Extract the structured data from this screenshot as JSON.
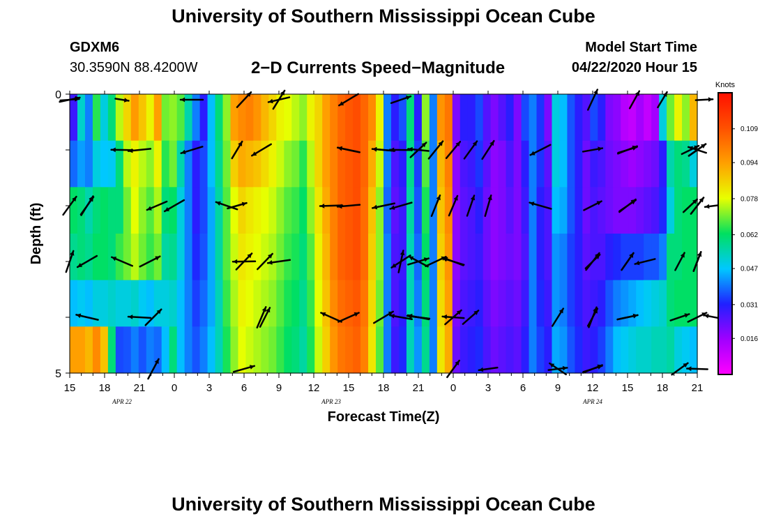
{
  "header": {
    "title": "University of Southern Mississippi Ocean Cube",
    "station_id": "GDXM6",
    "coordinates": "30.3590N 88.4200W",
    "product": "2−D Currents Speed−Magnitude",
    "model_start_label": "Model Start Time",
    "model_start_value": "04/22/2020 Hour 15"
  },
  "footer": {
    "title": "University of Southern Mississippi Ocean Cube"
  },
  "chart_data": {
    "type": "heatmap",
    "title": "2−D Currents Speed−Magnitude",
    "xlabel": "Forecast Time(Z)",
    "ylabel": "Depth (ft)",
    "y_range": [
      0,
      5
    ],
    "y_tick_labels": [
      "0",
      "5"
    ],
    "x_tick_labels": [
      "15",
      "18",
      "21",
      "0",
      "3",
      "6",
      "9",
      "12",
      "15",
      "18",
      "21",
      "0",
      "3",
      "6",
      "9",
      "12",
      "15",
      "18",
      "21"
    ],
    "date_labels": [
      "APR  22",
      "APR  23",
      "APR  24"
    ],
    "colorbar": {
      "unit": "Knots",
      "tick_labels": [
        "0.109",
        "0.094",
        "0.078",
        "0.062",
        "0.047",
        "0.031",
        "0.016"
      ],
      "ticks": [
        0.109,
        0.094,
        0.078,
        0.062,
        0.047,
        0.031,
        0.016
      ],
      "range": [
        0.0,
        0.125
      ],
      "colors": [
        "#ff00ff",
        "#a000ff",
        "#2020ff",
        "#00c8ff",
        "#00e060",
        "#e8ff00",
        "#ffa000",
        "#ff5000",
        "#ff1000"
      ]
    },
    "column_speeds": [
      [
        0.028,
        0.052,
        0.04,
        0.065,
        0.05,
        0.06,
        0.075,
        0.085,
        0.095,
        0.088,
        0.08,
        0.094,
        0.07,
        0.072,
        0.068,
        0.055,
        0.04,
        0.03,
        0.046,
        0.06,
        0.072,
        0.094,
        0.098,
        0.1,
        0.096,
        0.09,
        0.085,
        0.08,
        0.078,
        0.075,
        0.072,
        0.08,
        0.085,
        0.094,
        0.1,
        0.105,
        0.108,
        0.11,
        0.105,
        0.098,
        0.08,
        0.04,
        0.03,
        0.036,
        0.06,
        0.03,
        0.072,
        0.04,
        0.096,
        0.102,
        0.02,
        0.03,
        0.03,
        0.035,
        0.025,
        0.02,
        0.025,
        0.03,
        0.02,
        0.035,
        0.04,
        0.033,
        0.02,
        0.05,
        0.046,
        0.036,
        0.03,
        0.025,
        0.035,
        0.03,
        0.02,
        0.018,
        0.012,
        0.01,
        0.015,
        0.01,
        0.015,
        0.05,
        0.07,
        0.08,
        0.072,
        0.09
      ],
      [
        0.038,
        0.043,
        0.04,
        0.05,
        0.047,
        0.048,
        0.06,
        0.075,
        0.08,
        0.075,
        0.072,
        0.08,
        0.065,
        0.07,
        0.055,
        0.04,
        0.03,
        0.035,
        0.046,
        0.058,
        0.07,
        0.086,
        0.092,
        0.09,
        0.088,
        0.084,
        0.08,
        0.076,
        0.072,
        0.07,
        0.065,
        0.075,
        0.085,
        0.094,
        0.1,
        0.106,
        0.108,
        0.11,
        0.105,
        0.092,
        0.076,
        0.04,
        0.026,
        0.03,
        0.058,
        0.034,
        0.068,
        0.04,
        0.09,
        0.1,
        0.018,
        0.026,
        0.028,
        0.033,
        0.024,
        0.018,
        0.02,
        0.026,
        0.02,
        0.03,
        0.04,
        0.033,
        0.024,
        0.05,
        0.046,
        0.036,
        0.03,
        0.022,
        0.028,
        0.026,
        0.022,
        0.02,
        0.018,
        0.016,
        0.018,
        0.02,
        0.022,
        0.03,
        0.055,
        0.06,
        0.058,
        0.05
      ],
      [
        0.062,
        0.06,
        0.055,
        0.06,
        0.062,
        0.06,
        0.06,
        0.07,
        0.078,
        0.072,
        0.068,
        0.074,
        0.06,
        0.062,
        0.05,
        0.04,
        0.03,
        0.035,
        0.044,
        0.056,
        0.068,
        0.078,
        0.085,
        0.082,
        0.08,
        0.078,
        0.076,
        0.072,
        0.068,
        0.066,
        0.062,
        0.072,
        0.082,
        0.092,
        0.1,
        0.106,
        0.108,
        0.11,
        0.104,
        0.088,
        0.072,
        0.038,
        0.024,
        0.028,
        0.056,
        0.036,
        0.064,
        0.04,
        0.088,
        0.098,
        0.018,
        0.024,
        0.026,
        0.03,
        0.022,
        0.018,
        0.02,
        0.024,
        0.02,
        0.028,
        0.04,
        0.03,
        0.026,
        0.046,
        0.044,
        0.036,
        0.03,
        0.022,
        0.026,
        0.024,
        0.022,
        0.02,
        0.02,
        0.02,
        0.022,
        0.024,
        0.026,
        0.032,
        0.05,
        0.06,
        0.062,
        0.062
      ],
      [
        0.058,
        0.06,
        0.058,
        0.062,
        0.062,
        0.06,
        0.066,
        0.07,
        0.075,
        0.07,
        0.066,
        0.07,
        0.056,
        0.058,
        0.05,
        0.04,
        0.032,
        0.036,
        0.044,
        0.056,
        0.068,
        0.076,
        0.082,
        0.08,
        0.078,
        0.076,
        0.074,
        0.07,
        0.066,
        0.064,
        0.06,
        0.068,
        0.08,
        0.09,
        0.1,
        0.106,
        0.108,
        0.11,
        0.104,
        0.086,
        0.072,
        0.04,
        0.026,
        0.028,
        0.054,
        0.038,
        0.062,
        0.04,
        0.086,
        0.096,
        0.018,
        0.024,
        0.026,
        0.028,
        0.022,
        0.018,
        0.02,
        0.022,
        0.02,
        0.026,
        0.04,
        0.03,
        0.026,
        0.042,
        0.04,
        0.034,
        0.03,
        0.024,
        0.026,
        0.026,
        0.03,
        0.032,
        0.034,
        0.034,
        0.034,
        0.036,
        0.036,
        0.04,
        0.06,
        0.06,
        0.062,
        0.062
      ],
      [
        0.046,
        0.048,
        0.046,
        0.05,
        0.05,
        0.052,
        0.05,
        0.05,
        0.052,
        0.048,
        0.046,
        0.05,
        0.05,
        0.052,
        0.046,
        0.04,
        0.034,
        0.038,
        0.044,
        0.054,
        0.066,
        0.074,
        0.08,
        0.078,
        0.076,
        0.074,
        0.072,
        0.068,
        0.064,
        0.062,
        0.058,
        0.066,
        0.078,
        0.088,
        0.098,
        0.104,
        0.106,
        0.108,
        0.102,
        0.084,
        0.07,
        0.04,
        0.026,
        0.03,
        0.054,
        0.04,
        0.06,
        0.04,
        0.084,
        0.094,
        0.02,
        0.026,
        0.028,
        0.03,
        0.024,
        0.02,
        0.022,
        0.024,
        0.022,
        0.028,
        0.04,
        0.032,
        0.028,
        0.042,
        0.04,
        0.034,
        0.03,
        0.026,
        0.028,
        0.03,
        0.036,
        0.04,
        0.042,
        0.044,
        0.046,
        0.048,
        0.05,
        0.052,
        0.06,
        0.062,
        0.062,
        0.062
      ],
      [
        0.094,
        0.094,
        0.09,
        0.098,
        0.088,
        0.06,
        0.035,
        0.036,
        0.04,
        0.036,
        0.04,
        0.038,
        0.046,
        0.06,
        0.046,
        0.04,
        0.036,
        0.04,
        0.046,
        0.054,
        0.064,
        0.072,
        0.078,
        0.076,
        0.074,
        0.072,
        0.07,
        0.066,
        0.062,
        0.06,
        0.056,
        0.064,
        0.076,
        0.086,
        0.096,
        0.102,
        0.104,
        0.106,
        0.1,
        0.082,
        0.068,
        0.04,
        0.028,
        0.032,
        0.054,
        0.042,
        0.058,
        0.04,
        0.082,
        0.092,
        0.022,
        0.028,
        0.03,
        0.032,
        0.026,
        0.022,
        0.024,
        0.026,
        0.024,
        0.03,
        0.04,
        0.034,
        0.03,
        0.044,
        0.042,
        0.036,
        0.032,
        0.028,
        0.03,
        0.034,
        0.04,
        0.046,
        0.048,
        0.05,
        0.052,
        0.052,
        0.054,
        0.054,
        0.056,
        0.05,
        0.048,
        0.046
      ]
    ],
    "arrow_rows": [
      {
        "label": "row-1",
        "arrows": [
          [
            1.5,
            0.0
          ],
          [
            9.5,
            0.8
          ],
          [
            6.0,
            0.9
          ],
          [
            16.2,
            0.7
          ],
          [
            17.0,
            0.5
          ],
          [
            18.2,
            0.4
          ],
          [
            15.0,
            1.0
          ],
          [
            -8.0,
            1.0
          ],
          [
            0.0,
            0.8
          ],
          [
            0.0,
            0.6
          ],
          [
            -6.0,
            0.9
          ],
          [
            -3.5,
            1.0
          ],
          [
            5.0,
            0.8
          ]
        ]
      },
      {
        "label": "row-2",
        "arrows": [
          [
            -9.0,
            1.0
          ],
          [
            -8.0,
            1.0
          ],
          [
            -2.0,
            1.0
          ],
          [
            -9.0,
            1.0
          ],
          [
            -5.5,
            1.0
          ],
          [
            -1.5,
            0.9
          ],
          [
            -10.0,
            0.8
          ],
          [
            10.0,
            0.9
          ],
          [
            11.5,
            0.9
          ],
          [
            10.5,
            1.0
          ],
          [
            -18.0,
            0.6
          ],
          [
            -13.5,
            1.0
          ],
          [
            -9.5,
            1.0
          ],
          [
            12.0,
            0.9
          ],
          [
            18.0,
            0.8
          ],
          [
            16.0,
            0.7
          ],
          [
            4.8,
            0.7
          ],
          [
            17.8,
            0.6
          ],
          [
            18.0,
            0.8
          ],
          [
            16.0,
            0.8
          ],
          [
            15.0,
            0.7
          ],
          [
            -8.0,
            1.0
          ],
          [
            -3.5,
            1.0
          ],
          [
            11.0,
            0.9
          ]
        ]
      },
      {
        "label": "row-3",
        "arrows": [
          [
            0.5,
            1.0
          ],
          [
            -7.5,
            1.0
          ],
          [
            -9.0,
            1.0
          ],
          [
            -3.0,
            1.0
          ],
          [
            -9.0,
            1.0
          ],
          [
            -4.5,
            1.0
          ],
          [
            -2.5,
            0.9
          ],
          [
            0.0,
            1.0
          ],
          [
            11.5,
            0.9
          ],
          [
            10.5,
            1.0
          ],
          [
            -18.5,
            0.7
          ],
          [
            -13.5,
            1.0
          ],
          [
            -9.5,
            1.0
          ],
          [
            12.0,
            0.9
          ],
          [
            18.0,
            0.8
          ],
          [
            16.0,
            0.7
          ],
          [
            4.8,
            0.7
          ],
          [
            17.8,
            0.6
          ],
          [
            18.0,
            0.8
          ],
          [
            16.0,
            0.8
          ],
          [
            15.0,
            0.7
          ],
          [
            -8.0,
            1.0
          ],
          [
            0.5,
            0.9
          ],
          [
            11.0,
            0.9
          ]
        ]
      },
      {
        "label": "row-4",
        "arrows": [
          [
            2.3,
            1.0
          ],
          [
            5.0,
            1.0
          ],
          [
            9.5,
            1.0
          ],
          [
            -5.0,
            1.0
          ],
          [
            -9.5,
            1.0
          ],
          [
            -1.5,
            1.0
          ],
          [
            -6.0,
            1.0
          ],
          [
            -0.5,
            1.0
          ],
          [
            0.0,
            1.0
          ],
          [
            10.5,
            1.0
          ],
          [
            -16.5,
            0.8
          ],
          [
            -11.0,
            0.9
          ],
          [
            -10.0,
            0.9
          ],
          [
            10.0,
            0.9
          ],
          [
            15.0,
            0.9
          ],
          [
            16.0,
            0.8
          ],
          [
            5.6,
            0.9
          ],
          [
            17.5,
            0.7
          ],
          [
            18.0,
            0.8
          ],
          [
            16.0,
            0.8
          ],
          [
            15.0,
            0.7
          ],
          [
            18.0,
            0.8
          ],
          [
            -11.0,
            1.0
          ]
        ]
      },
      {
        "label": "row-5",
        "arrows": [
          [
            2.4,
            1.0
          ],
          [
            5.5,
            1.0
          ],
          [
            9.0,
            1.0
          ],
          [
            -10.0,
            1.0
          ],
          [
            -7.5,
            1.0
          ],
          [
            8.0,
            1.0
          ],
          [
            -9.5,
            1.0
          ],
          [
            -10.0,
            1.0
          ],
          [
            14.0,
            0.8
          ],
          [
            11.5,
            0.8
          ],
          [
            -18.5,
            0.9
          ],
          [
            -11.0,
            0.9
          ],
          [
            -10.0,
            0.9
          ],
          [
            11.0,
            0.9
          ],
          [
            15.0,
            0.9
          ],
          [
            16.0,
            0.8
          ],
          [
            5.6,
            0.9
          ],
          [
            17.5,
            0.7
          ],
          [
            18.0,
            0.8
          ],
          [
            16.0,
            0.8
          ],
          [
            15.0,
            0.7
          ],
          [
            -0.5,
            1.0
          ],
          [
            -2.0,
            1.0
          ]
        ]
      },
      {
        "label": "row-6",
        "arrows": [
          [
            2.4,
            1.0
          ],
          [
            5.0,
            0.9
          ],
          [
            15.0,
            0.7
          ],
          [
            -14.0,
            0.7
          ],
          [
            -12.0,
            0.6
          ],
          [
            -18.0,
            0.8
          ],
          [
            15.0,
            0.8
          ],
          [
            17.5,
            0.7
          ],
          [
            11.0,
            0.8
          ],
          [
            14.0,
            0.6
          ]
        ]
      }
    ]
  }
}
